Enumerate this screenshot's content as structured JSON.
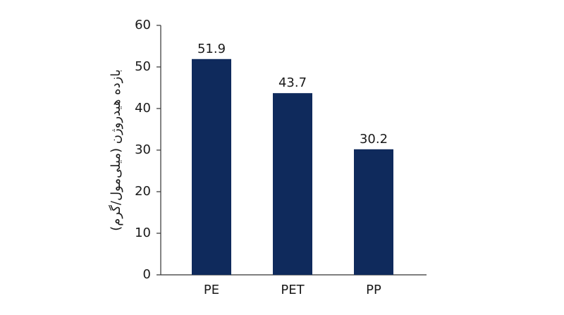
{
  "chart_data": {
    "type": "bar",
    "y_label": "بازده هیدروژن (میلی‌مول/گرم)",
    "categories": [
      "PE",
      "PET",
      "PP"
    ],
    "values": [
      51.9,
      43.7,
      30.2
    ],
    "color": "#0f2a5c",
    "ylim": [
      0,
      60
    ],
    "yticks": [
      0,
      10,
      20,
      30,
      40,
      50,
      60
    ],
    "grid": false
  }
}
